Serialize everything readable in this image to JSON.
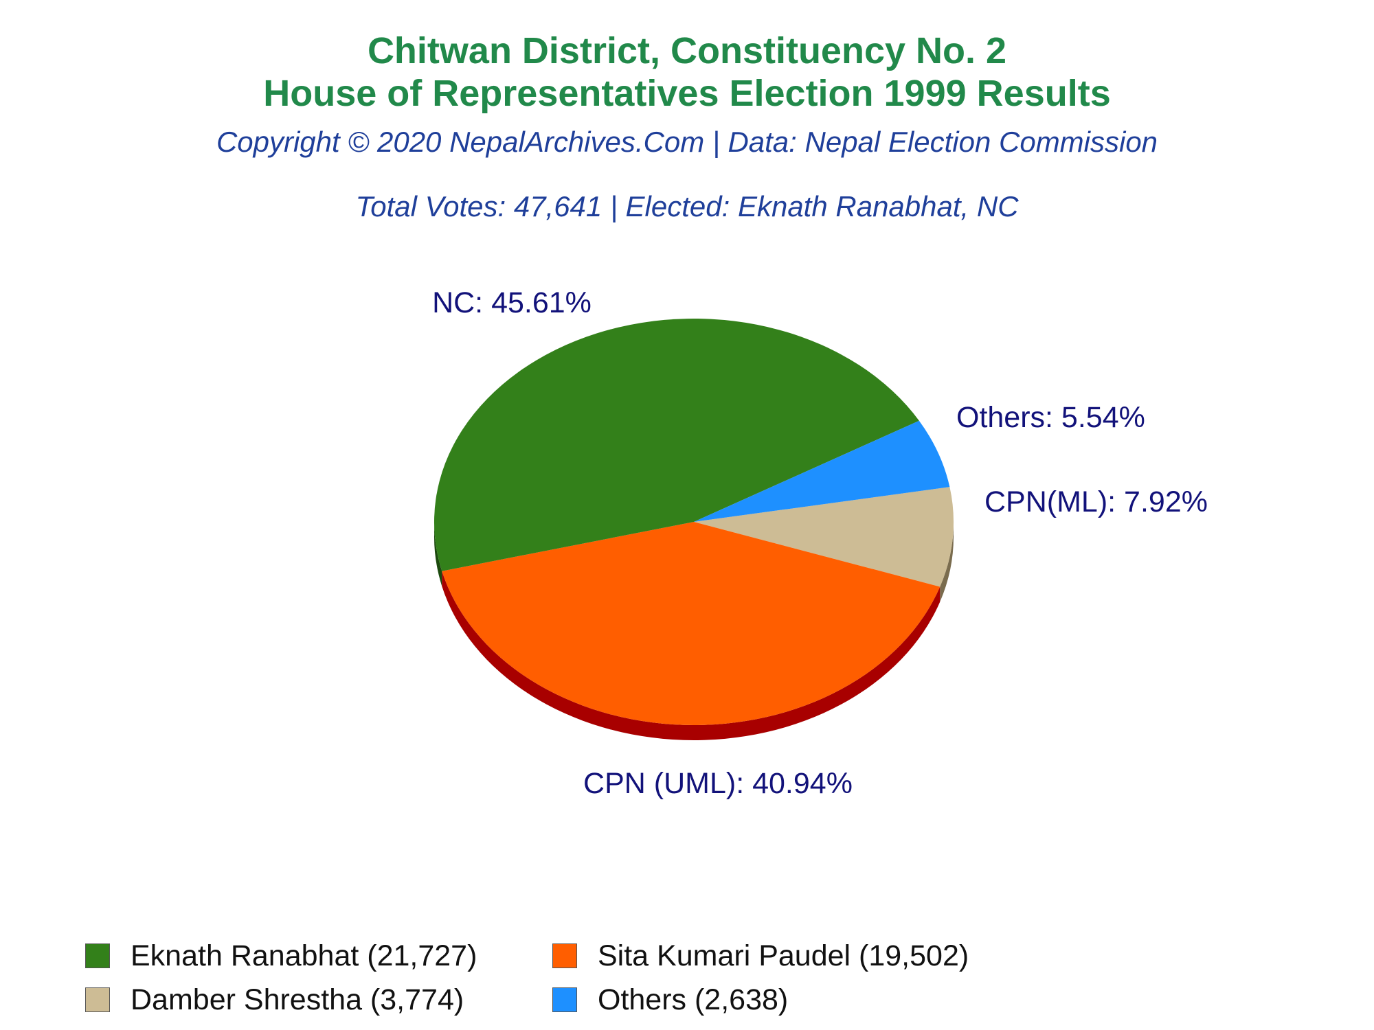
{
  "header": {
    "title_line1": "Chitwan District, Constituency No. 2",
    "title_line2": "House of Representatives Election 1999 Results",
    "subtitle": "Copyright © 2020 NepalArchives.Com | Data: Nepal Election Commission",
    "summary": "Total Votes: 47,641 | Elected: Eknath Ranabhat, NC"
  },
  "chart_data": {
    "type": "pie",
    "title": "Chitwan District, Constituency No. 2 House of Representatives Election 1999 Results",
    "slices": [
      {
        "label": "NC: 45.61%",
        "value": 45.61,
        "legend": "Eknath Ranabhat (21,727)",
        "color": "#33801a",
        "side_color": "#1c4a0e"
      },
      {
        "label": "CPN (UML): 40.94%",
        "value": 40.94,
        "legend": "Sita Kumari Paudel (19,502)",
        "color": "#ff5e00",
        "side_color": "#a80000"
      },
      {
        "label": "CPN(ML): 7.92%",
        "value": 7.92,
        "legend": "Damber Shrestha (3,774)",
        "color": "#cdbc95",
        "side_color": "#7a6c4e"
      },
      {
        "label": "Others: 5.54%",
        "value": 5.54,
        "legend": "Others (2,638)",
        "color": "#1e90ff",
        "side_color": "#0f4f99"
      }
    ],
    "legend_position": "bottom"
  }
}
